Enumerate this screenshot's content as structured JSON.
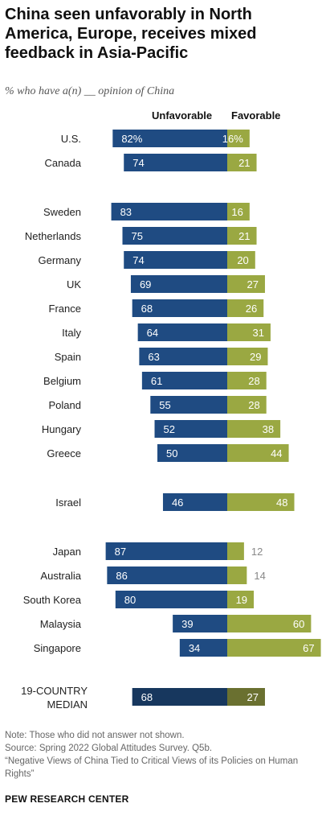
{
  "header": {
    "title": "China seen unfavorably in North America, Europe, receives mixed feedback in Asia-Pacific",
    "subtitle": "% who have a(n) __ opinion of China"
  },
  "chart_data": {
    "type": "bar",
    "orientation": "horizontal-diverging",
    "series": [
      {
        "name": "Unfavorable",
        "color": "#1f4b82"
      },
      {
        "name": "Favorable",
        "color": "#9aa842"
      }
    ],
    "groups": [
      {
        "rows": [
          {
            "label": "U.S.",
            "unfavorable": 82,
            "favorable": 16,
            "unfavorable_text": "82%",
            "favorable_text": "16%"
          },
          {
            "label": "Canada",
            "unfavorable": 74,
            "favorable": 21,
            "unfavorable_text": "74",
            "favorable_text": "21"
          }
        ]
      },
      {
        "rows": [
          {
            "label": "Sweden",
            "unfavorable": 83,
            "favorable": 16,
            "unfavorable_text": "83",
            "favorable_text": "16"
          },
          {
            "label": "Netherlands",
            "unfavorable": 75,
            "favorable": 21,
            "unfavorable_text": "75",
            "favorable_text": "21"
          },
          {
            "label": "Germany",
            "unfavorable": 74,
            "favorable": 20,
            "unfavorable_text": "74",
            "favorable_text": "20"
          },
          {
            "label": "UK",
            "unfavorable": 69,
            "favorable": 27,
            "unfavorable_text": "69",
            "favorable_text": "27"
          },
          {
            "label": "France",
            "unfavorable": 68,
            "favorable": 26,
            "unfavorable_text": "68",
            "favorable_text": "26"
          },
          {
            "label": "Italy",
            "unfavorable": 64,
            "favorable": 31,
            "unfavorable_text": "64",
            "favorable_text": "31"
          },
          {
            "label": "Spain",
            "unfavorable": 63,
            "favorable": 29,
            "unfavorable_text": "63",
            "favorable_text": "29"
          },
          {
            "label": "Belgium",
            "unfavorable": 61,
            "favorable": 28,
            "unfavorable_text": "61",
            "favorable_text": "28"
          },
          {
            "label": "Poland",
            "unfavorable": 55,
            "favorable": 28,
            "unfavorable_text": "55",
            "favorable_text": "28"
          },
          {
            "label": "Hungary",
            "unfavorable": 52,
            "favorable": 38,
            "unfavorable_text": "52",
            "favorable_text": "38"
          },
          {
            "label": "Greece",
            "unfavorable": 50,
            "favorable": 44,
            "unfavorable_text": "50",
            "favorable_text": "44"
          }
        ]
      },
      {
        "rows": [
          {
            "label": "Israel",
            "unfavorable": 46,
            "favorable": 48,
            "unfavorable_text": "46",
            "favorable_text": "48"
          }
        ]
      },
      {
        "rows": [
          {
            "label": "Japan",
            "unfavorable": 87,
            "favorable": 12,
            "unfavorable_text": "87",
            "favorable_text": "12"
          },
          {
            "label": "Australia",
            "unfavorable": 86,
            "favorable": 14,
            "unfavorable_text": "86",
            "favorable_text": "14"
          },
          {
            "label": "South Korea",
            "unfavorable": 80,
            "favorable": 19,
            "unfavorable_text": "80",
            "favorable_text": "19"
          },
          {
            "label": "Malaysia",
            "unfavorable": 39,
            "favorable": 60,
            "unfavorable_text": "39",
            "favorable_text": "60"
          },
          {
            "label": "Singapore",
            "unfavorable": 34,
            "favorable": 67,
            "unfavorable_text": "34",
            "favorable_text": "67"
          }
        ]
      },
      {
        "median": true,
        "rows": [
          {
            "label_lines": [
              "19-COUNTRY",
              "MEDIAN"
            ],
            "unfavorable": 68,
            "favorable": 27,
            "unfavorable_text": "68",
            "favorable_text": "27"
          }
        ]
      }
    ],
    "colors": {
      "unfavorable": "#1f4b82",
      "favorable": "#9aa842",
      "unfavorable_median": "#17375e",
      "favorable_median": "#6a7030",
      "outside_label": "#888888"
    }
  },
  "footer": {
    "note": "Note: Those who did not answer not shown.",
    "source": "Source: Spring 2022 Global Attitudes Survey. Q5b.",
    "report": "“Negative Views of China Tied to Critical Views of its Policies on Human Rights”",
    "brand": "PEW RESEARCH CENTER"
  }
}
